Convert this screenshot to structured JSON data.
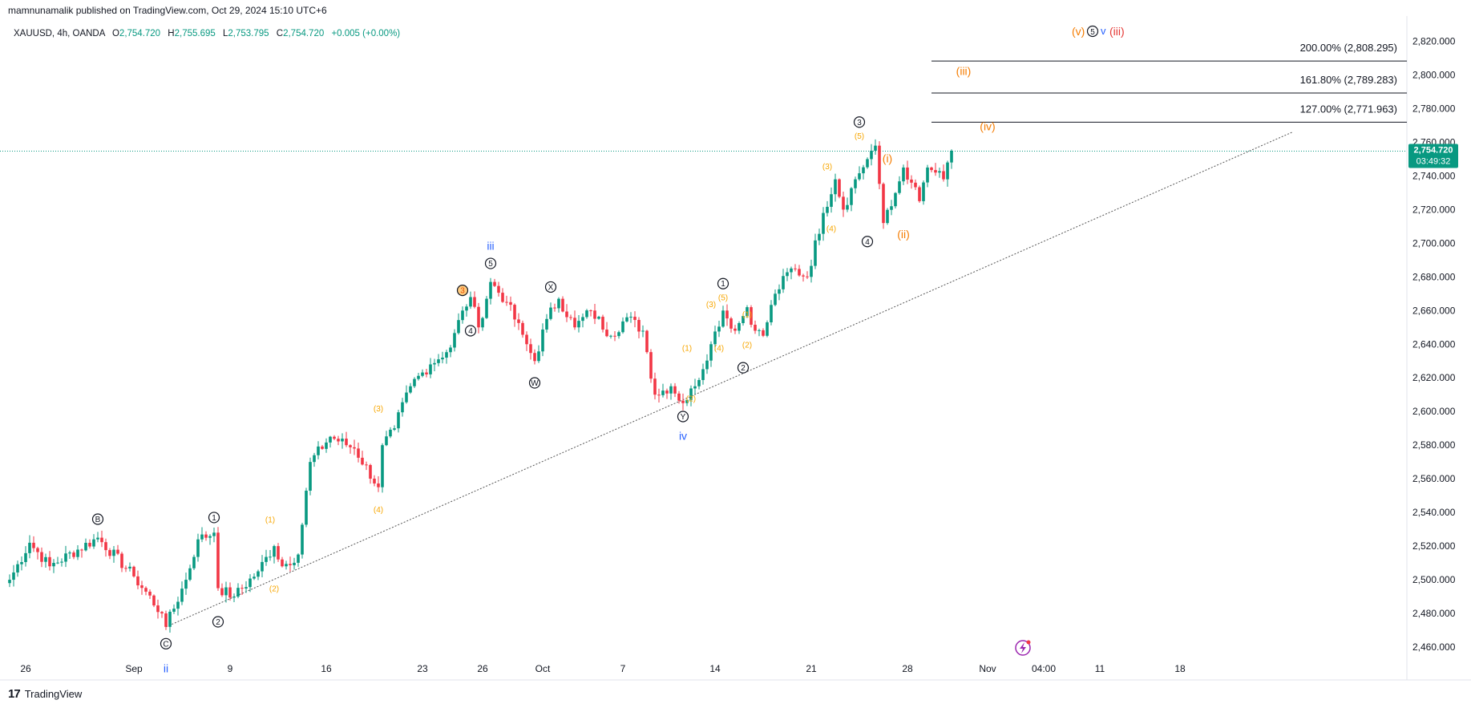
{
  "publisher_line": "mamnunamalik published on TradingView.com, Oct 29, 2024 15:10 UTC+6",
  "footer_brand": "TradingView",
  "legend": {
    "symbol": "XAUUSD, 4h, OANDA",
    "o_label": "O",
    "o_value": "2,754.720",
    "h_label": "H",
    "h_value": "2,755.695",
    "l_label": "L",
    "l_value": "2,753.795",
    "c_label": "C",
    "c_value": "2,754.720",
    "change": "+0.005 (+0.00%)"
  },
  "colors": {
    "up": "#089981",
    "down": "#f23645",
    "orange": "#f7a600",
    "orange_dark": "#f57c00",
    "blue": "#2962ff",
    "price_tag": "#089981",
    "red_label": "#e53935"
  },
  "chart_data": {
    "type": "candlestick",
    "title": "XAUUSD, 4h, OANDA",
    "ylim": [
      2450,
      2830
    ],
    "y_ticks": [
      "2,460.000",
      "2,480.000",
      "2,500.000",
      "2,520.000",
      "2,540.000",
      "2,560.000",
      "2,580.000",
      "2,600.000",
      "2,620.000",
      "2,640.000",
      "2,660.000",
      "2,680.000",
      "2,700.000",
      "2,720.000",
      "2,740.000",
      "2,760.000",
      "2,780.000",
      "2,800.000",
      "2,820.000"
    ],
    "y_tick_values": [
      2460,
      2480,
      2500,
      2520,
      2540,
      2560,
      2580,
      2600,
      2620,
      2640,
      2660,
      2680,
      2700,
      2720,
      2740,
      2760,
      2780,
      2800,
      2820
    ],
    "x_ticks": [
      "26",
      "Sep",
      "9",
      "16",
      "23",
      "26",
      "Oct",
      "7",
      "14",
      "21",
      "28",
      "Nov",
      "04:00",
      "11",
      "18"
    ],
    "x_tick_bars": [
      4,
      31,
      55,
      79,
      103,
      118,
      133,
      153,
      176,
      200,
      224,
      244,
      258,
      272,
      292
    ],
    "last_price": "2,754.720",
    "countdown": "03:49:32",
    "last_price_value": 2754.72,
    "anchors": [
      {
        "bar": 0,
        "price": 2500
      },
      {
        "bar": 5,
        "price": 2522
      },
      {
        "bar": 10,
        "price": 2508
      },
      {
        "bar": 22,
        "price": 2525
      },
      {
        "bar": 31,
        "price": 2502
      },
      {
        "bar": 38,
        "price": 2480
      },
      {
        "bar": 39,
        "price": 2472
      },
      {
        "bar": 44,
        "price": 2500
      },
      {
        "bar": 47,
        "price": 2524
      },
      {
        "bar": 51,
        "price": 2528
      },
      {
        "bar": 52,
        "price": 2495
      },
      {
        "bar": 56,
        "price": 2490
      },
      {
        "bar": 62,
        "price": 2505
      },
      {
        "bar": 66,
        "price": 2520
      },
      {
        "bar": 68,
        "price": 2508
      },
      {
        "bar": 72,
        "price": 2515
      },
      {
        "bar": 75,
        "price": 2570
      },
      {
        "bar": 80,
        "price": 2585
      },
      {
        "bar": 86,
        "price": 2578
      },
      {
        "bar": 92,
        "price": 2555
      },
      {
        "bar": 93,
        "price": 2580
      },
      {
        "bar": 96,
        "price": 2590
      },
      {
        "bar": 100,
        "price": 2615
      },
      {
        "bar": 105,
        "price": 2628
      },
      {
        "bar": 110,
        "price": 2638
      },
      {
        "bar": 113,
        "price": 2660
      },
      {
        "bar": 115,
        "price": 2668
      },
      {
        "bar": 117,
        "price": 2650
      },
      {
        "bar": 120,
        "price": 2677
      },
      {
        "bar": 124,
        "price": 2665
      },
      {
        "bar": 129,
        "price": 2640
      },
      {
        "bar": 131,
        "price": 2630
      },
      {
        "bar": 134,
        "price": 2655
      },
      {
        "bar": 137,
        "price": 2667
      },
      {
        "bar": 141,
        "price": 2650
      },
      {
        "bar": 145,
        "price": 2660
      },
      {
        "bar": 150,
        "price": 2645
      },
      {
        "bar": 154,
        "price": 2656
      },
      {
        "bar": 158,
        "price": 2648
      },
      {
        "bar": 161,
        "price": 2610
      },
      {
        "bar": 165,
        "price": 2615
      },
      {
        "bar": 168,
        "price": 2605
      },
      {
        "bar": 171,
        "price": 2615
      },
      {
        "bar": 175,
        "price": 2640
      },
      {
        "bar": 178,
        "price": 2660
      },
      {
        "bar": 181,
        "price": 2648
      },
      {
        "bar": 184,
        "price": 2662
      },
      {
        "bar": 186,
        "price": 2648
      },
      {
        "bar": 188,
        "price": 2645
      },
      {
        "bar": 191,
        "price": 2670
      },
      {
        "bar": 195,
        "price": 2685
      },
      {
        "bar": 199,
        "price": 2680
      },
      {
        "bar": 203,
        "price": 2718
      },
      {
        "bar": 206,
        "price": 2738
      },
      {
        "bar": 208,
        "price": 2720
      },
      {
        "bar": 211,
        "price": 2738
      },
      {
        "bar": 214,
        "price": 2750
      },
      {
        "bar": 215,
        "price": 2755
      },
      {
        "bar": 216,
        "price": 2758
      },
      {
        "bar": 218,
        "price": 2712
      },
      {
        "bar": 220,
        "price": 2722
      },
      {
        "bar": 223,
        "price": 2745
      },
      {
        "bar": 225,
        "price": 2736
      },
      {
        "bar": 227,
        "price": 2725
      },
      {
        "bar": 229,
        "price": 2745
      },
      {
        "bar": 231,
        "price": 2742
      },
      {
        "bar": 233,
        "price": 2738
      },
      {
        "bar": 234,
        "price": 2748
      },
      {
        "bar": 235,
        "price": 2755
      }
    ],
    "trendline": {
      "from": {
        "bar": 39,
        "price": 2472
      },
      "to": {
        "bar": 320,
        "price": 2766
      },
      "style": "dotted"
    },
    "fib_levels": [
      {
        "label": "200.00% (2,808.295)",
        "value": 2808.295
      },
      {
        "label": "161.80% (2,789.283)",
        "value": 2789.283
      },
      {
        "label": "127.00% (2,771.963)",
        "value": 2771.963
      }
    ],
    "wave_labels": [
      {
        "text": "ii",
        "bar": 39,
        "price": 2447,
        "color": "blue",
        "style": "plain"
      },
      {
        "text": "C",
        "bar": 39,
        "price": 2462,
        "color": "black",
        "style": "circle"
      },
      {
        "text": "B",
        "bar": 22,
        "price": 2536,
        "color": "black",
        "style": "circle"
      },
      {
        "text": "1",
        "bar": 51,
        "price": 2537,
        "color": "black",
        "style": "circle"
      },
      {
        "text": "2",
        "bar": 52,
        "price": 2475,
        "color": "black",
        "style": "circle"
      },
      {
        "text": "(1)",
        "bar": 65,
        "price": 2536,
        "color": "orange",
        "style": "plain"
      },
      {
        "text": "(2)",
        "bar": 66,
        "price": 2495,
        "color": "orange",
        "style": "plain"
      },
      {
        "text": "(3)",
        "bar": 92,
        "price": 2602,
        "color": "orange",
        "style": "plain"
      },
      {
        "text": "(4)",
        "bar": 92,
        "price": 2542,
        "color": "orange",
        "style": "plain"
      },
      {
        "text": "3",
        "bar": 113,
        "price": 2672,
        "color": "orange",
        "style": "circle-filled"
      },
      {
        "text": "4",
        "bar": 115,
        "price": 2648,
        "color": "black",
        "style": "circle"
      },
      {
        "text": "5",
        "bar": 120,
        "price": 2688,
        "color": "black",
        "style": "circle"
      },
      {
        "text": "iii",
        "bar": 120,
        "price": 2698,
        "color": "blue",
        "style": "plain"
      },
      {
        "text": "X",
        "bar": 135,
        "price": 2674,
        "color": "black",
        "style": "circle"
      },
      {
        "text": "W",
        "bar": 131,
        "price": 2617,
        "color": "black",
        "style": "circle"
      },
      {
        "text": "Y",
        "bar": 168,
        "price": 2597,
        "color": "black",
        "style": "circle"
      },
      {
        "text": "iv",
        "bar": 168,
        "price": 2585,
        "color": "blue",
        "style": "plain"
      },
      {
        "text": "(1)",
        "bar": 169,
        "price": 2638,
        "color": "orange",
        "style": "plain"
      },
      {
        "text": "(2)",
        "bar": 170,
        "price": 2608,
        "color": "orange",
        "style": "plain"
      },
      {
        "text": "(3)",
        "bar": 175,
        "price": 2664,
        "color": "orange",
        "style": "plain"
      },
      {
        "text": "(4)",
        "bar": 177,
        "price": 2638,
        "color": "orange",
        "style": "plain"
      },
      {
        "text": "1",
        "bar": 178,
        "price": 2676,
        "color": "black",
        "style": "circle"
      },
      {
        "text": "(5)",
        "bar": 178,
        "price": 2668,
        "color": "orange",
        "style": "plain"
      },
      {
        "text": "(1)",
        "bar": 184,
        "price": 2658,
        "color": "orange",
        "style": "plain"
      },
      {
        "text": "(2)",
        "bar": 184,
        "price": 2640,
        "color": "orange",
        "style": "plain"
      },
      {
        "text": "2",
        "bar": 183,
        "price": 2626,
        "color": "black",
        "style": "circle"
      },
      {
        "text": "(3)",
        "bar": 204,
        "price": 2746,
        "color": "orange",
        "style": "plain"
      },
      {
        "text": "(4)",
        "bar": 205,
        "price": 2709,
        "color": "orange",
        "style": "plain"
      },
      {
        "text": "3",
        "bar": 212,
        "price": 2772,
        "color": "black",
        "style": "circle"
      },
      {
        "text": "(5)",
        "bar": 212,
        "price": 2764,
        "color": "orange",
        "style": "plain"
      },
      {
        "text": "4",
        "bar": 214,
        "price": 2701,
        "color": "black",
        "style": "circle"
      },
      {
        "text": "(i)",
        "bar": 219,
        "price": 2750,
        "color": "orange_dark",
        "style": "plain-big"
      },
      {
        "text": "(ii)",
        "bar": 223,
        "price": 2705,
        "color": "orange_dark",
        "style": "plain-big"
      },
      {
        "text": "(iv)",
        "bar": 244,
        "price": 2769,
        "color": "orange_dark",
        "style": "plain-big"
      },
      {
        "text": "(iii)",
        "bar": 238,
        "price": 2802,
        "color": "orange_dark",
        "style": "plain-big"
      }
    ],
    "top_cluster": {
      "a": "(v)",
      "b": "5",
      "c": "v",
      "d": "(iii)"
    }
  }
}
